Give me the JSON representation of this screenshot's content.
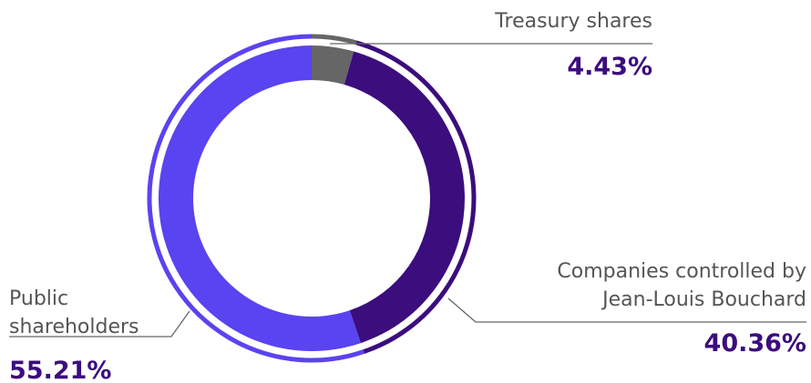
{
  "chart_data": {
    "type": "pie",
    "categories": [
      "Treasury shares",
      "Companies controlled by Jean-Louis Bouchard",
      "Public shareholders"
    ],
    "values": [
      4.43,
      40.36,
      55.21
    ],
    "value_labels": [
      "4.43%",
      "40.36%",
      "55.21%"
    ],
    "colors": [
      "#666666",
      "#3b0d7d",
      "#5a43f0"
    ]
  }
}
